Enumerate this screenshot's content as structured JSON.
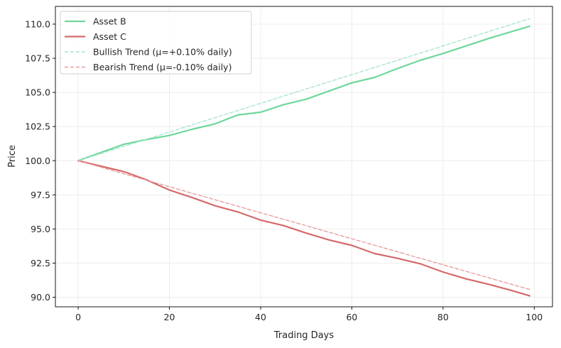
{
  "chart_data": {
    "type": "line",
    "title": "",
    "xlabel": "Trading Days",
    "ylabel": "Price",
    "xlim": [
      -5,
      104
    ],
    "ylim": [
      89.3,
      111.3
    ],
    "xticks": [
      0,
      20,
      40,
      60,
      80,
      100
    ],
    "xtick_labels": [
      "0",
      "20",
      "40",
      "60",
      "80",
      "100"
    ],
    "yticks": [
      90.0,
      92.5,
      95.0,
      97.5,
      100.0,
      102.5,
      105.0,
      107.5,
      110.0
    ],
    "ytick_labels": [
      "90.0",
      "92.5",
      "95.0",
      "97.5",
      "100.0",
      "102.5",
      "105.0",
      "107.5",
      "110.0"
    ],
    "grid": true,
    "legend_position": "top-left",
    "series": [
      {
        "name": "Asset B",
        "color": "#6fd79b",
        "style": "solid",
        "x": [
          0,
          5,
          10,
          15,
          20,
          25,
          30,
          35,
          40,
          45,
          50,
          55,
          60,
          65,
          70,
          75,
          80,
          85,
          90,
          95,
          99
        ],
        "values": [
          100.0,
          100.6,
          101.2,
          101.55,
          101.85,
          102.3,
          102.7,
          103.35,
          103.55,
          104.1,
          104.5,
          105.1,
          105.7,
          106.1,
          106.75,
          107.35,
          107.85,
          108.4,
          108.95,
          109.45,
          109.85
        ]
      },
      {
        "name": "Asset C",
        "color": "#d46a6a",
        "style": "solid",
        "x": [
          0,
          5,
          10,
          15,
          20,
          25,
          30,
          35,
          40,
          45,
          50,
          55,
          60,
          65,
          70,
          75,
          80,
          85,
          90,
          95,
          99
        ],
        "values": [
          100.0,
          99.6,
          99.2,
          98.6,
          97.85,
          97.3,
          96.7,
          96.25,
          95.65,
          95.25,
          94.7,
          94.2,
          93.8,
          93.2,
          92.85,
          92.45,
          91.85,
          91.35,
          90.95,
          90.5,
          90.1
        ]
      },
      {
        "name": "Bullish Trend (μ=+0.10% daily)",
        "color": "#a8e6cf",
        "style": "dashed",
        "x": [
          0,
          99
        ],
        "values": [
          100.0,
          110.4
        ]
      },
      {
        "name": "Bearish Trend (μ=-0.10% daily)",
        "color": "#e8a0a0",
        "style": "dashed",
        "x": [
          0,
          99
        ],
        "values": [
          100.0,
          90.57
        ]
      }
    ]
  }
}
